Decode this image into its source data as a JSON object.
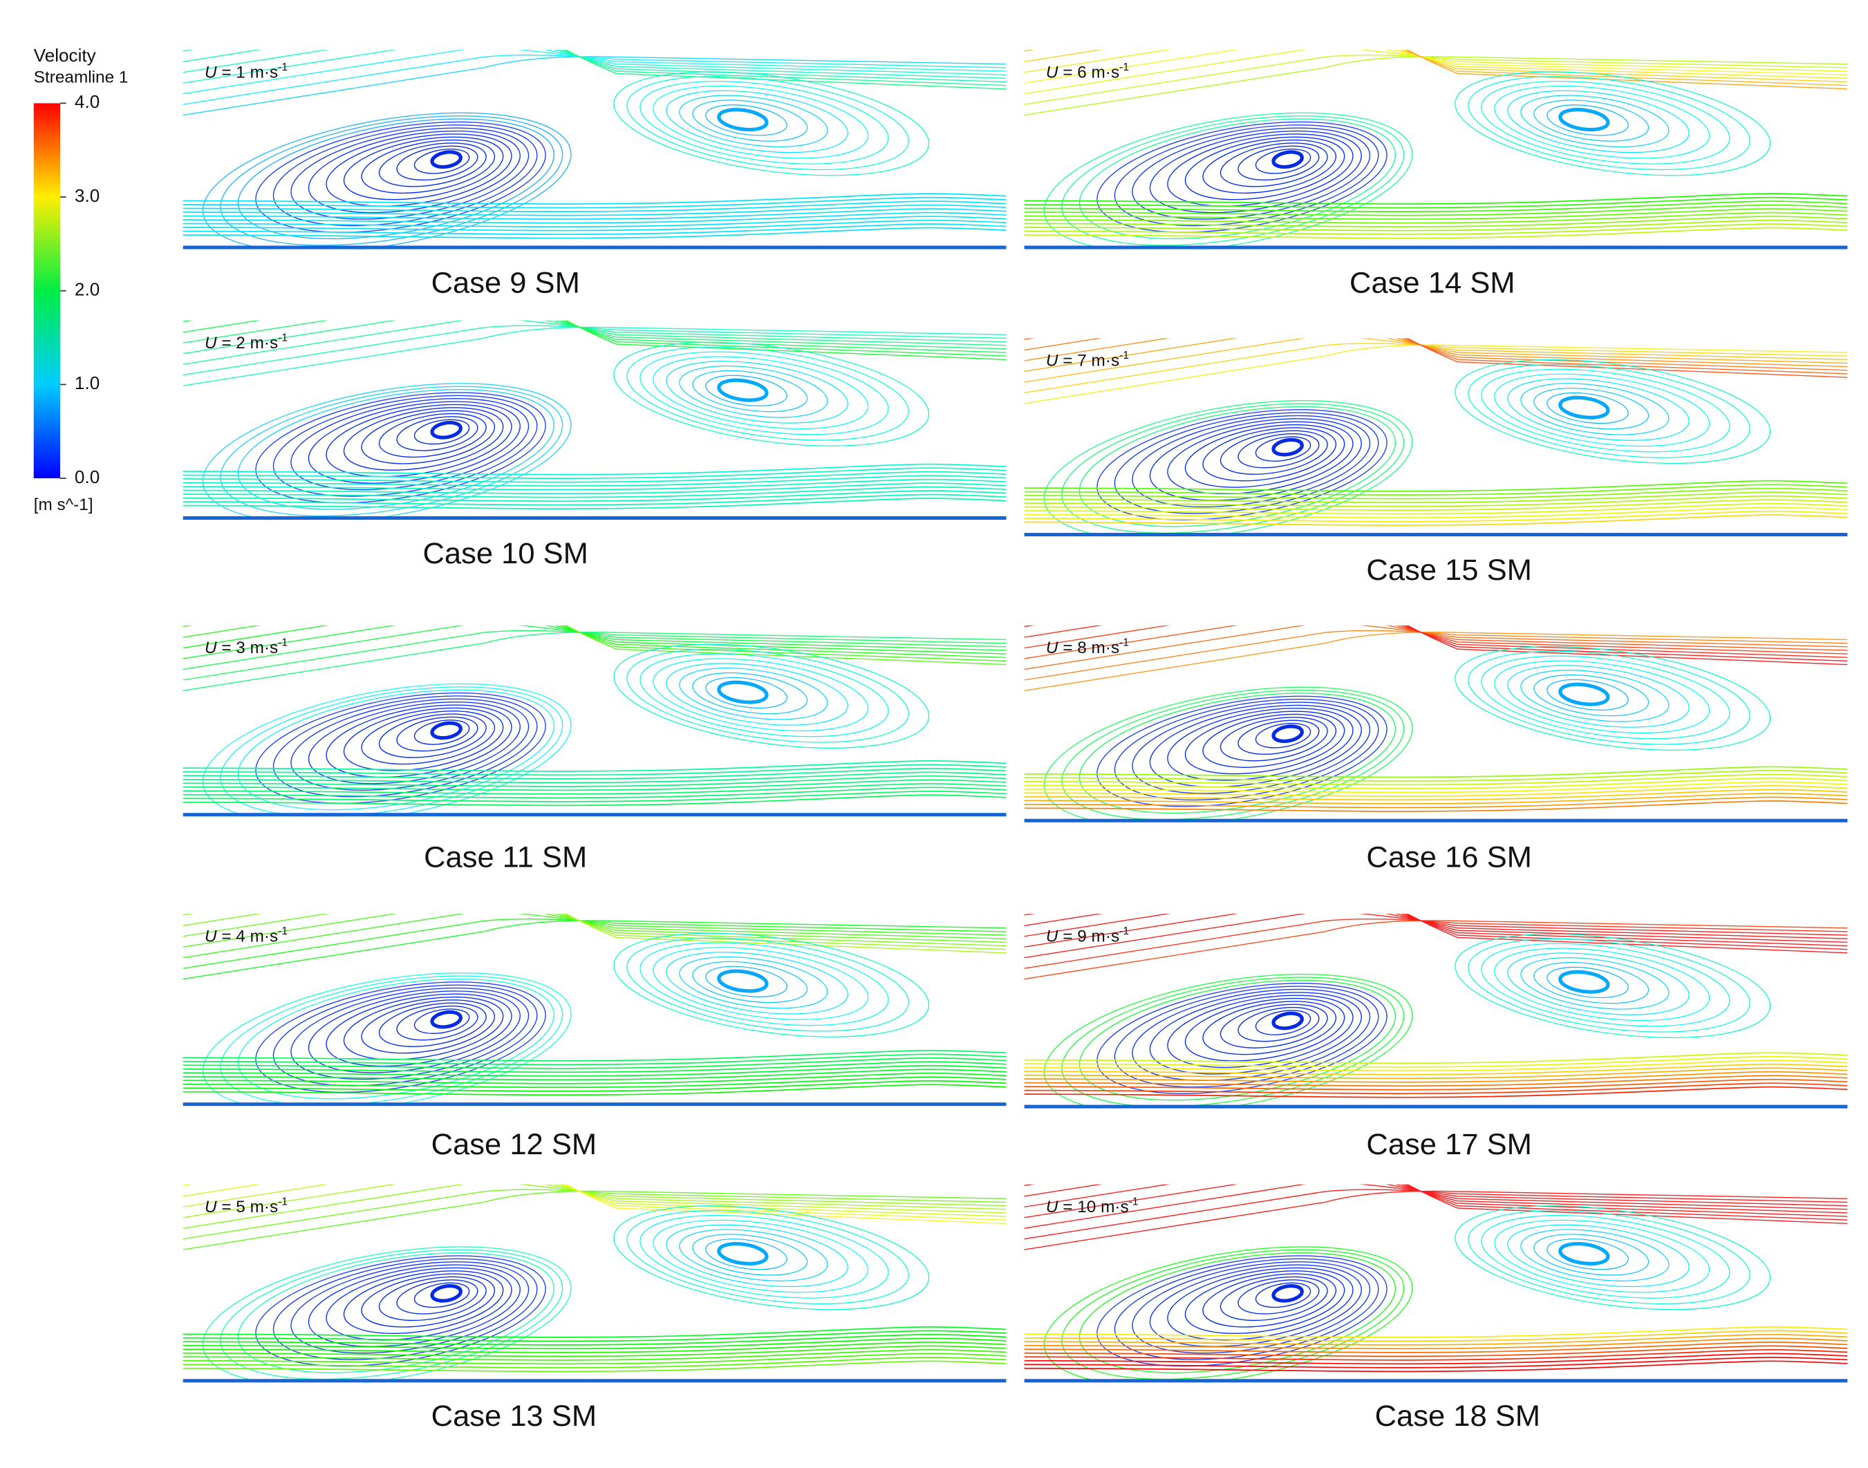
{
  "legend": {
    "title": "Velocity",
    "subtitle": "Streamline 1",
    "unit": "[m s^-1]",
    "range": [
      0,
      4
    ],
    "ticks": [
      {
        "value": 4,
        "label": "4.0"
      },
      {
        "value": 3,
        "label": "3.0"
      },
      {
        "value": 2,
        "label": "2.0"
      },
      {
        "value": 1,
        "label": "1.0"
      },
      {
        "value": 0,
        "label": "0.0"
      }
    ]
  },
  "panels": [
    {
      "label": "Case 9 SM",
      "symbol": "U",
      "text": " = 1 m·s",
      "exponent": "-1"
    },
    {
      "label": "Case 10 SM",
      "symbol": "U",
      "text": " = 2 m·s",
      "exponent": "-1"
    },
    {
      "label": "Case 11 SM",
      "symbol": "U",
      "text": " = 3 m·s",
      "exponent": "-1"
    },
    {
      "label": "Case 12 SM",
      "symbol": "U",
      "text": " = 4 m·s",
      "exponent": "-1"
    },
    {
      "label": "Case 13 SM",
      "symbol": "U",
      "text": " = 5 m·s",
      "exponent": "-1"
    },
    {
      "label": "Case 14 SM",
      "symbol": "U",
      "text": " = 6 m·s",
      "exponent": "-1"
    },
    {
      "label": "Case 15 SM",
      "symbol": "U",
      "text": " = 7 m·s",
      "exponent": "-1"
    },
    {
      "label": "Case 16 SM",
      "symbol": "U",
      "text": " = 8 m·s",
      "exponent": "-1"
    },
    {
      "label": "Case 17 SM",
      "symbol": "U",
      "text": " = 9 m·s",
      "exponent": "-1"
    },
    {
      "label": "Case 18 SM",
      "symbol": "U",
      "text": " = 10 m·s",
      "exponent": "-1"
    }
  ]
}
